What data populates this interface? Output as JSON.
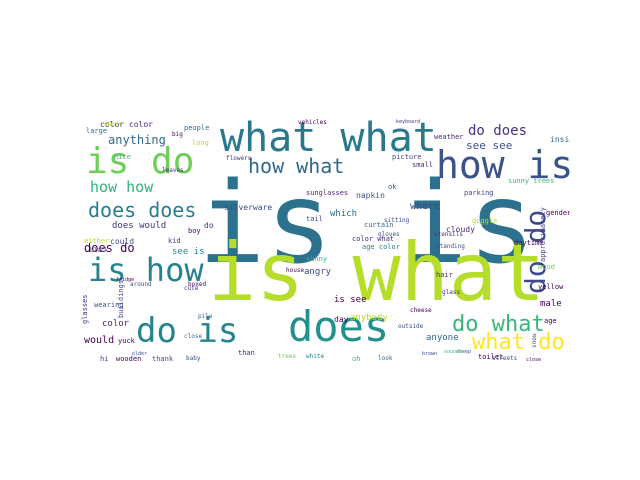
{
  "words": [
    {
      "text": "is is",
      "color": "#2c728e"
    },
    {
      "text": "is what",
      "color": "#b5de2b"
    },
    {
      "text": "what what",
      "color": "#2a788e"
    },
    {
      "text": "is do",
      "color": "#6ece58"
    },
    {
      "text": "does",
      "color": "#21918c"
    },
    {
      "text": "do is",
      "color": "#25848e"
    },
    {
      "text": "how is",
      "color": "#3b528b"
    },
    {
      "text": "is how",
      "color": "#26828e"
    },
    {
      "text": "how what",
      "color": "#31688e"
    },
    {
      "text": "does does",
      "color": "#287d8e"
    },
    {
      "text": "do what",
      "color": "#35b779"
    },
    {
      "text": "do do",
      "color": "#3e4989"
    },
    {
      "text": "what do",
      "color": "#fde725"
    },
    {
      "text": "how how",
      "color": "#2fb47c"
    },
    {
      "text": "do does",
      "color": "#46327e"
    },
    {
      "text": "does do",
      "color": "#440154"
    },
    {
      "text": "anything",
      "color": "#31688e"
    },
    {
      "text": "see see",
      "color": "#3b528b"
    },
    {
      "text": "color color",
      "color": "#482878"
    },
    {
      "text": "where",
      "color": "#3e4989"
    },
    {
      "text": "anyone",
      "color": "#31688e"
    },
    {
      "text": "male",
      "color": "#440154"
    },
    {
      "text": "color",
      "color": "#482878"
    },
    {
      "text": "would",
      "color": "#440154"
    },
    {
      "text": "does would",
      "color": "#46327e"
    },
    {
      "text": "sunny trees",
      "color": "#35b779"
    },
    {
      "text": "flowers",
      "color": "#46327e"
    },
    {
      "text": "sunglasses",
      "color": "#482878"
    },
    {
      "text": "anybody",
      "color": "#b5de2b"
    },
    {
      "text": "day",
      "color": "#440154"
    },
    {
      "text": "angry",
      "color": "#3e4989"
    },
    {
      "text": "inside",
      "color": "#31688e"
    },
    {
      "text": "gender",
      "color": "#440154"
    },
    {
      "text": "silverware",
      "color": "#3e4989"
    },
    {
      "text": "which",
      "color": "#31688e"
    },
    {
      "text": "cloudy",
      "color": "#482878"
    },
    {
      "text": "daytime",
      "color": "#440154"
    },
    {
      "text": "napkin",
      "color": "#3b528b"
    },
    {
      "text": "is see",
      "color": "#440154"
    },
    {
      "text": "see is",
      "color": "#26828e"
    },
    {
      "text": "approximately",
      "color": "#3e4989"
    },
    {
      "text": "do",
      "color": "#46327e"
    },
    {
      "text": "nice",
      "color": "#35b779"
    },
    {
      "text": "color what",
      "color": "#482878"
    },
    {
      "text": "age color",
      "color": "#26828e"
    },
    {
      "text": "could",
      "color": "#3e4989"
    },
    {
      "text": "kid",
      "color": "#46327e"
    },
    {
      "text": "large",
      "color": "#31688e"
    },
    {
      "text": "goggle",
      "color": "#b5de2b"
    },
    {
      "text": "people",
      "color": "#31688e"
    },
    {
      "text": "boy",
      "color": "#440154"
    },
    {
      "text": "hi",
      "color": "#3e4989"
    },
    {
      "text": "wooden",
      "color": "#440154"
    },
    {
      "text": "thank",
      "color": "#3e4989"
    },
    {
      "text": "baby",
      "color": "#3b528b"
    },
    {
      "text": "than",
      "color": "#482878"
    },
    {
      "text": "white",
      "color": "#26828e"
    },
    {
      "text": "oh",
      "color": "#35b779"
    },
    {
      "text": "look",
      "color": "#31688e"
    },
    {
      "text": "streets",
      "color": "#3b528b"
    },
    {
      "text": "cheese",
      "color": "#440154"
    },
    {
      "text": "outside",
      "color": "#3e4989"
    },
    {
      "text": "hair",
      "color": "#482878"
    },
    {
      "text": "close",
      "color": "#31688e"
    },
    {
      "text": "short",
      "color": "#b5de2b"
    },
    {
      "text": "wearing",
      "color": "#3b528b"
    },
    {
      "text": "yuck",
      "color": "#440154"
    },
    {
      "text": "glass",
      "color": "#46327e"
    },
    {
      "text": "mood",
      "color": "#6ece58"
    },
    {
      "text": "yellow",
      "color": "#440154"
    },
    {
      "text": "tail",
      "color": "#3e4989"
    },
    {
      "text": "curtain",
      "color": "#31688e"
    },
    {
      "text": "sitting",
      "color": "#3e4989"
    },
    {
      "text": "standing",
      "color": "#3b528b"
    },
    {
      "text": "picture",
      "color": "#3e4989"
    },
    {
      "text": "small",
      "color": "#482878"
    },
    {
      "text": "weather",
      "color": "#482878"
    },
    {
      "text": "parking",
      "color": "#3e4989"
    },
    {
      "text": "toilet",
      "color": "#440154"
    },
    {
      "text": "trees",
      "color": "#6ece58"
    },
    {
      "text": "house",
      "color": "#440154"
    },
    {
      "text": "pile",
      "color": "#3b528b"
    },
    {
      "text": "leaves",
      "color": "#482878"
    },
    {
      "text": "age",
      "color": "#440154"
    },
    {
      "text": "sunny",
      "color": "#35b779"
    },
    {
      "text": "ok",
      "color": "#3b528b"
    },
    {
      "text": "big",
      "color": "#440154"
    },
    {
      "text": "long",
      "color": "#b5de2b"
    },
    {
      "text": "vehicles",
      "color": "#440154"
    },
    {
      "text": "keyboard",
      "color": "#46327e"
    },
    {
      "text": "utensils",
      "color": "#482878"
    },
    {
      "text": "gloves",
      "color": "#3b528b"
    },
    {
      "text": "either",
      "color": "#b5de2b"
    },
    {
      "text": "fridge",
      "color": "#440154"
    },
    {
      "text": "around",
      "color": "#3e4989"
    },
    {
      "text": "boxed",
      "color": "#440154"
    },
    {
      "text": "cute",
      "color": "#482878"
    },
    {
      "text": "older",
      "color": "#3b528b"
    },
    {
      "text": "black",
      "color": "#3e4989"
    },
    {
      "text": "glasses",
      "color": "#46327e"
    },
    {
      "text": "buildings",
      "color": "#3e4989"
    },
    {
      "text": "snow",
      "color": "#3b528b"
    },
    {
      "text": "sheep",
      "color": "#3e4989"
    },
    {
      "text": "brown",
      "color": "#35b779"
    },
    {
      "text": "sounds",
      "color": "#440154"
    },
    {
      "text": "close",
      "color": "#35b779"
    }
  ]
}
